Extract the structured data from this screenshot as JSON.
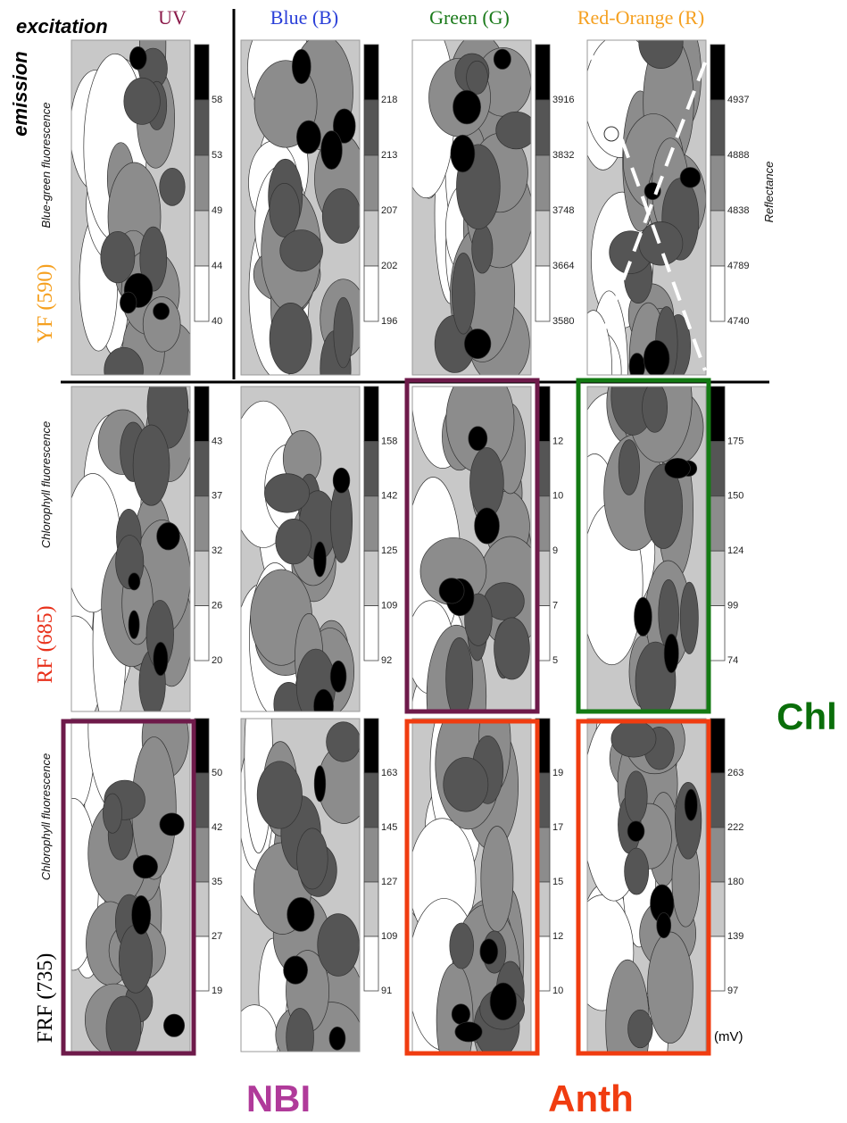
{
  "header": {
    "excitation": "excitation",
    "emission": "emission"
  },
  "columns": [
    "UV",
    "Blue (B)",
    "Green (G)",
    "Red-Orange (R)"
  ],
  "rows": [
    {
      "label": "YF (590)",
      "sublabel": "Blue-green fluorescence",
      "colorbars": [
        [
          "58",
          "53",
          "49",
          "44",
          "40"
        ],
        [
          "218",
          "213",
          "207",
          "202",
          "196"
        ],
        [
          "3916",
          "3832",
          "3748",
          "3664",
          "3580"
        ],
        [
          "4937",
          "4888",
          "4838",
          "4789",
          "4740"
        ]
      ]
    },
    {
      "label": "RF (685)",
      "sublabel": "Chlorophyll fluorescence",
      "colorbars": [
        [
          "43",
          "37",
          "32",
          "26",
          "20"
        ],
        [
          "158",
          "142",
          "125",
          "109",
          "92"
        ],
        [
          "12",
          "10",
          "9",
          "7",
          "5"
        ],
        [
          "175",
          "150",
          "124",
          "99",
          "74"
        ]
      ]
    },
    {
      "label": "FRF (735)",
      "sublabel": "Chlorophyll fluorescence",
      "colorbars": [
        [
          "50",
          "42",
          "35",
          "27",
          "19"
        ],
        [
          "163",
          "145",
          "127",
          "109",
          "91"
        ],
        [
          "19",
          "17",
          "15",
          "12",
          "10"
        ],
        [
          "263",
          "222",
          "180",
          "139",
          "97"
        ]
      ]
    }
  ],
  "reflectance": "Reflectance",
  "unit": "(mV)",
  "indices": [
    "NBI",
    "Anth",
    "Chl"
  ]
}
